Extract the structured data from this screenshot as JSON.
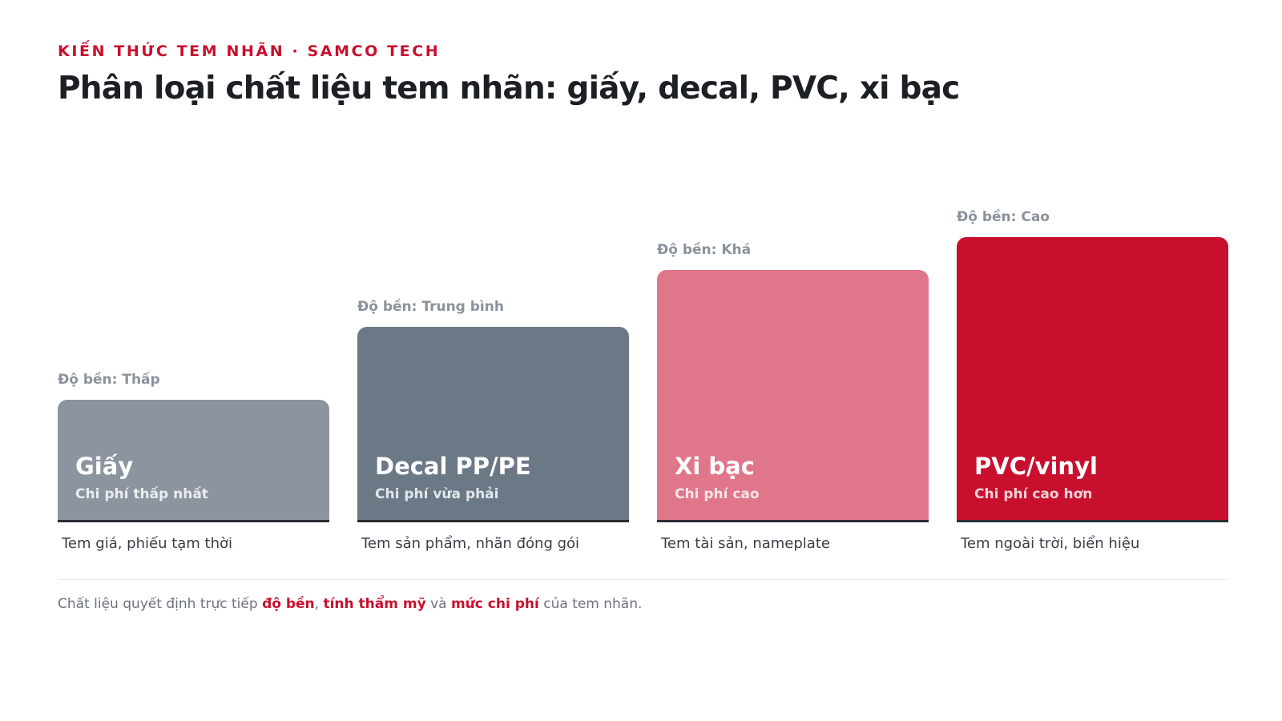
{
  "header": {
    "eyebrow": "KIẾN THỨC TEM NHÃN · SAMCO TECH",
    "title": "Phân loại chất liệu tem nhãn: giấy, decal, PVC, xi bạc"
  },
  "chart_data": {
    "type": "bar",
    "categories": [
      "Giấy",
      "Decal PP/PE",
      "Xi bạc",
      "PVC/vinyl"
    ],
    "values": [
      1.5,
      2.4,
      3.1,
      3.5
    ],
    "ylim": [
      0,
      3.5
    ],
    "durability_labels": [
      "Độ bền: Thấp",
      "Độ bền: Trung bình",
      "Độ bền: Khá",
      "Độ bền: Cao"
    ],
    "cost_labels": [
      "Chi phí thấp nhất",
      "Chi phí vừa phải",
      "Chi phí cao",
      "Chi phí cao hơn"
    ],
    "use_labels": [
      "Tem giá, phiếu tạm thời",
      "Tem sản phẩm, nhãn đóng gói",
      "Tem tài sản, nameplate",
      "Tem ngoài trời, biển hiệu"
    ],
    "colors": [
      "#8c959f",
      "#6b7886",
      "#e0768a",
      "#c8102e"
    ],
    "grid": false,
    "legend": "none"
  },
  "footnote": {
    "prefix": "Chất liệu quyết định trực tiếp ",
    "hl1": "độ bền",
    "sep1": ", ",
    "hl2": "tính thẩm mỹ",
    "sep2": " và ",
    "hl3": "mức chi phí",
    "suffix": " của tem nhãn."
  }
}
